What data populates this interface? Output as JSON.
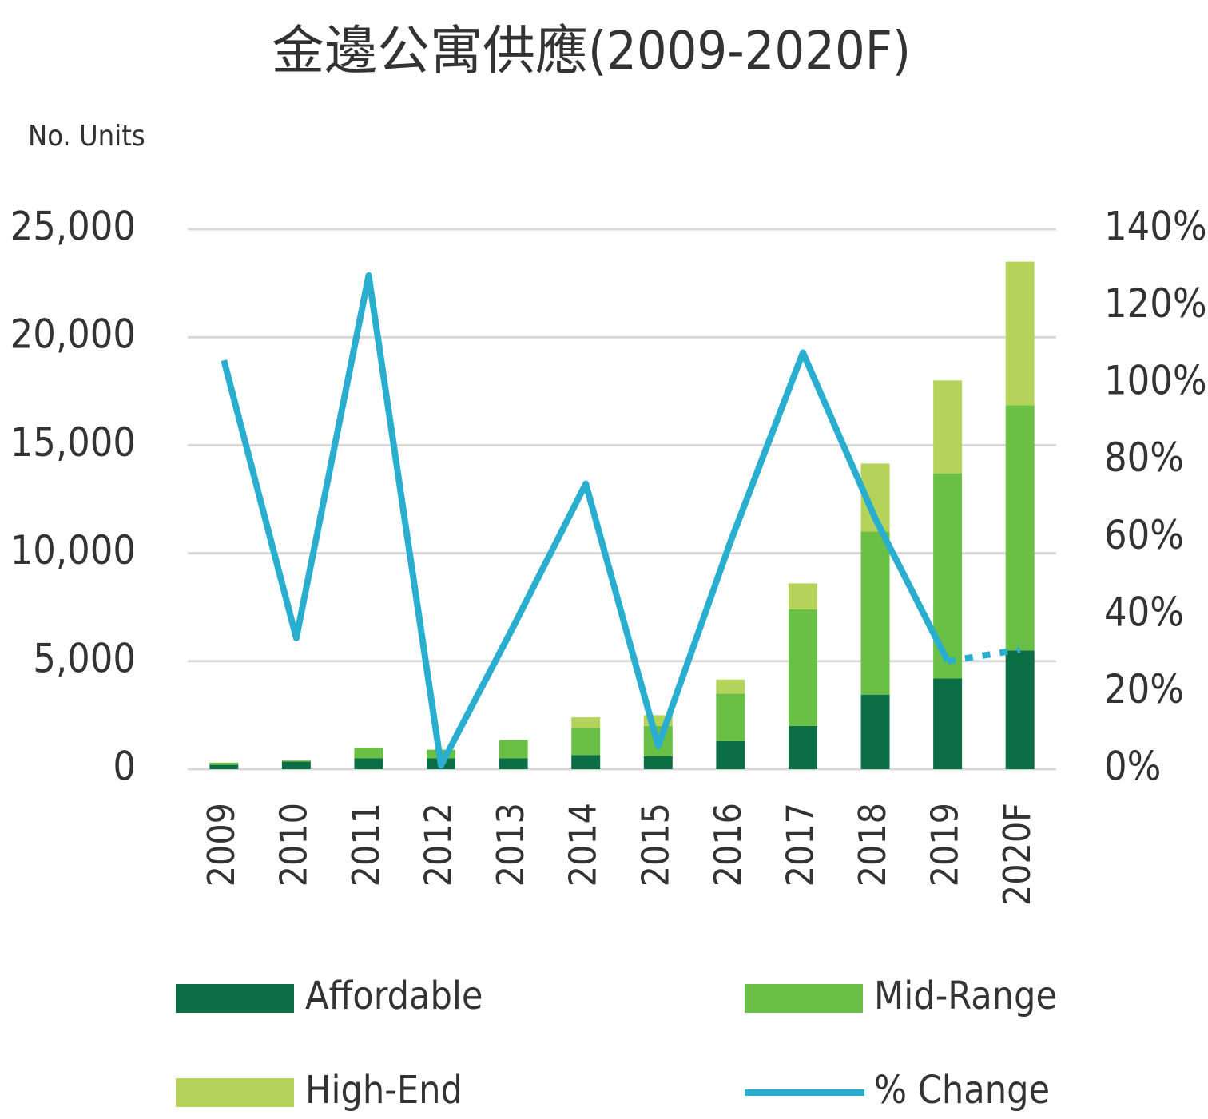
{
  "chart_data": {
    "type": "bar",
    "stacked": true,
    "title": "金邊公寓供應(2009-2020F)",
    "y_axis_label": "No. Units",
    "categories": [
      "2009",
      "2010",
      "2011",
      "2012",
      "2013",
      "2014",
      "2015",
      "2016",
      "2017",
      "2018",
      "2019",
      "2020F"
    ],
    "series": [
      {
        "name": "Affordable",
        "color": "#0b6e45",
        "values": [
          200,
          350,
          500,
          500,
          500,
          650,
          600,
          1300,
          2000,
          3450,
          4200,
          5500
        ]
      },
      {
        "name": "Mid-Range",
        "color": "#6abf45",
        "values": [
          100,
          50,
          500,
          400,
          850,
          1250,
          1400,
          2200,
          5400,
          7550,
          9500,
          11350
        ]
      },
      {
        "name": "High-End",
        "color": "#b5d35a",
        "values": [
          0,
          0,
          0,
          0,
          0,
          500,
          500,
          650,
          1200,
          3150,
          4300,
          6650
        ]
      },
      {
        "name": "% Change",
        "color": "#2aaed0",
        "type": "line",
        "axis": "y2",
        "dashed_last_segment": true,
        "values": [
          106,
          34,
          128,
          1,
          37,
          74,
          6,
          59,
          108,
          65,
          28,
          31
        ]
      }
    ],
    "ylim": [
      0,
      25000
    ],
    "yticks": [
      0,
      {
        "value": 5000,
        "label": "5,000"
      },
      {
        "value": 10000,
        "label": "10,000"
      },
      {
        "value": 15000,
        "label": "15,000"
      },
      {
        "value": 20000,
        "label": "20,000"
      },
      {
        "value": 25000,
        "label": "25,000"
      }
    ],
    "y2lim": [
      0,
      140
    ],
    "y2ticks": [
      {
        "value": 0,
        "label": "0%"
      },
      {
        "value": 20,
        "label": "20%"
      },
      {
        "value": 40,
        "label": "40%"
      },
      {
        "value": 60,
        "label": "60%"
      },
      {
        "value": 80,
        "label": "80%"
      },
      {
        "value": 100,
        "label": "100%"
      },
      {
        "value": 120,
        "label": "120%"
      },
      {
        "value": 140,
        "label": "140%"
      }
    ],
    "grid": true
  }
}
